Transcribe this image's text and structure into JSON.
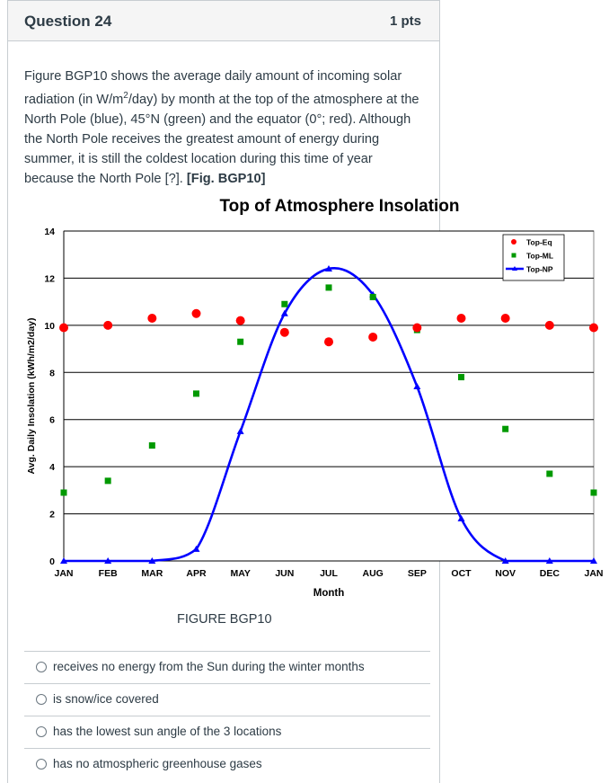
{
  "question": {
    "title": "Question 24",
    "points": "1 pts",
    "text_parts": {
      "p1": "Figure BGP10 shows the average daily amount of incoming solar radiation (in W/m",
      "sup": "2",
      "p2": "/day) by month at the top of the atmosphere at the North Pole (blue), 45°N (green) and the equator (0°; red). Although the North Pole receives the greatest amount of energy during summer, it is still the coldest location during this time of year because the North Pole [?].",
      "ref": "[Fig. BGP10]"
    },
    "figure_caption": "FIGURE BGP10",
    "answers": [
      "receives no energy from the Sun during the winter months",
      "is snow/ice covered",
      "has the lowest sun angle of the 3 locations",
      "has no atmospheric greenhouse gases"
    ]
  },
  "colors": {
    "eq": "#ff0000",
    "ml": "#009900",
    "np": "#0000ff"
  },
  "chart_data": {
    "type": "scatter",
    "title": "Top of Atmosphere Insolation",
    "xlabel": "Month",
    "ylabel": "Avg. Daily Insolation (kWh/m2/day)",
    "categories": [
      "JAN",
      "FEB",
      "MAR",
      "APR",
      "MAY",
      "JUN",
      "JUL",
      "AUG",
      "SEP",
      "OCT",
      "NOV",
      "DEC",
      "JAN"
    ],
    "ylim": [
      0,
      14
    ],
    "yticks": [
      "0",
      "2",
      "4",
      "6",
      "8",
      "10",
      "12",
      "14"
    ],
    "grid": true,
    "legend_position": "top-right",
    "series": [
      {
        "name": "Top-Eq",
        "marker": "circle",
        "values": [
          9.9,
          10.0,
          10.3,
          10.5,
          10.2,
          9.7,
          9.3,
          9.5,
          9.9,
          10.3,
          10.3,
          10.0,
          9.9
        ]
      },
      {
        "name": "Top-ML",
        "marker": "square",
        "values": [
          2.9,
          3.4,
          4.9,
          7.1,
          9.3,
          10.9,
          11.6,
          11.2,
          9.8,
          7.8,
          5.6,
          3.7,
          2.9
        ]
      },
      {
        "name": "Top-NP",
        "marker": "triangle-line",
        "values": [
          0,
          0,
          0,
          0.5,
          5.5,
          10.5,
          12.4,
          11.3,
          7.4,
          1.8,
          0,
          0,
          0
        ]
      }
    ]
  }
}
